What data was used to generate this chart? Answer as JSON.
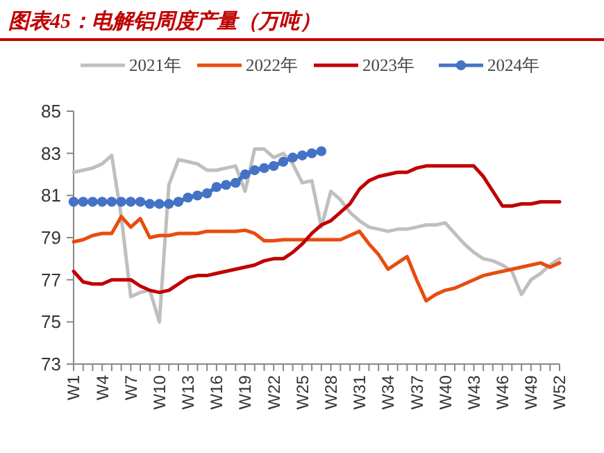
{
  "chart_data": {
    "type": "line",
    "title": "图表45：电解铝周度产量（万吨）",
    "categories": [
      "W1",
      null,
      null,
      "W4",
      null,
      null,
      "W7",
      null,
      null,
      "W10",
      null,
      null,
      "W13",
      null,
      null,
      "W16",
      null,
      null,
      "W19",
      null,
      null,
      "W22",
      null,
      null,
      "W25",
      null,
      null,
      "W28",
      null,
      null,
      "W31",
      null,
      null,
      "W34",
      null,
      null,
      "W37",
      null,
      null,
      "W40",
      null,
      null,
      "W43",
      null,
      null,
      "W46",
      null,
      null,
      "W49",
      null,
      null,
      "W52"
    ],
    "series": [
      {
        "name": "2021年",
        "color": "#bfbfbf",
        "marker": "none",
        "values": [
          82.1,
          82.2,
          82.3,
          82.5,
          82.9,
          80.0,
          76.2,
          76.4,
          76.5,
          75.0,
          81.5,
          82.7,
          82.6,
          82.5,
          82.2,
          82.2,
          82.3,
          82.4,
          81.2,
          83.2,
          83.2,
          82.8,
          83.0,
          82.5,
          81.6,
          81.7,
          79.5,
          81.2,
          80.8,
          80.2,
          79.8,
          79.5,
          79.4,
          79.3,
          79.4,
          79.4,
          79.5,
          79.6,
          79.6,
          79.7,
          79.2,
          78.7,
          78.3,
          78.0,
          77.9,
          77.7,
          77.4,
          76.3,
          77.0,
          77.3,
          77.7,
          78.0
        ]
      },
      {
        "name": "2022年",
        "color": "#e84c0e",
        "marker": "none",
        "values": [
          78.8,
          78.9,
          79.1,
          79.2,
          79.2,
          80.0,
          79.5,
          79.9,
          79.0,
          79.1,
          79.1,
          79.2,
          79.2,
          79.2,
          79.3,
          79.3,
          79.3,
          79.3,
          79.35,
          79.2,
          78.85,
          78.85,
          78.9,
          78.9,
          78.9,
          78.9,
          78.9,
          78.9,
          78.9,
          79.1,
          79.3,
          78.7,
          78.2,
          77.5,
          77.8,
          78.1,
          77.0,
          76.0,
          76.3,
          76.5,
          76.6,
          76.8,
          77.0,
          77.2,
          77.3,
          77.4,
          77.5,
          77.6,
          77.7,
          77.8,
          77.6,
          77.8
        ]
      },
      {
        "name": "2023年",
        "color": "#c00000",
        "marker": "none",
        "values": [
          77.4,
          76.9,
          76.8,
          76.8,
          77.0,
          77.0,
          77.0,
          76.7,
          76.5,
          76.4,
          76.5,
          76.8,
          77.1,
          77.2,
          77.2,
          77.3,
          77.4,
          77.5,
          77.6,
          77.7,
          77.9,
          78.0,
          78.0,
          78.3,
          78.7,
          79.2,
          79.6,
          79.8,
          80.2,
          80.6,
          81.3,
          81.7,
          81.9,
          82.0,
          82.1,
          82.1,
          82.3,
          82.4,
          82.4,
          82.4,
          82.4,
          82.4,
          82.4,
          81.9,
          81.2,
          80.5,
          80.5,
          80.6,
          80.6,
          80.7,
          80.7,
          80.7
        ]
      },
      {
        "name": "2024年",
        "color": "#4472c4",
        "marker": "circle",
        "values": [
          80.7,
          80.7,
          80.7,
          80.7,
          80.7,
          80.7,
          80.7,
          80.7,
          80.6,
          80.6,
          80.6,
          80.7,
          80.9,
          81.0,
          81.1,
          81.4,
          81.5,
          81.6,
          82.0,
          82.2,
          82.3,
          82.4,
          82.6,
          82.8,
          82.9,
          83.0,
          83.1,
          null,
          null,
          null,
          null,
          null,
          null,
          null,
          null,
          null,
          null,
          null,
          null,
          null,
          null,
          null,
          null,
          null,
          null,
          null,
          null,
          null,
          null,
          null,
          null,
          null
        ]
      }
    ],
    "ylim": [
      73,
      85
    ],
    "yticks": [
      73,
      75,
      77,
      79,
      81,
      83,
      85
    ],
    "legend": "top",
    "grid": false
  }
}
